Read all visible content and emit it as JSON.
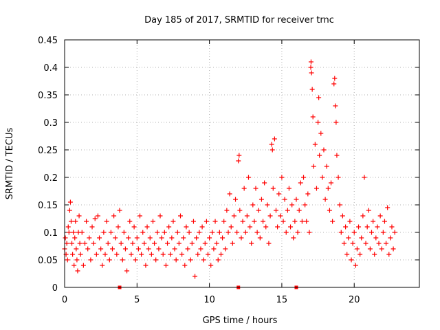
{
  "chart_data": {
    "type": "scatter",
    "title": "Day 185 of 2017, SRMTID for receiver trnc",
    "xlabel": "GPS time / hours",
    "ylabel": "SRMTID / TECUs",
    "xlim": [
      0,
      24.5
    ],
    "ylim": [
      0,
      0.45
    ],
    "xticks": [
      0,
      5,
      10,
      15,
      20
    ],
    "xtick_labels": [
      "0",
      "5",
      "10",
      "15",
      "20"
    ],
    "yticks": [
      0,
      0.05,
      0.1,
      0.15,
      0.2,
      0.25,
      0.3,
      0.35,
      0.4,
      0.45
    ],
    "ytick_labels": [
      "0",
      "0.05",
      "0.1",
      "0.15",
      "0.2",
      "0.25",
      "0.3",
      "0.35",
      "0.4",
      "0.45"
    ],
    "grid": true,
    "marker": "plus",
    "series": [
      {
        "name": "SRMTID",
        "color": "#ff0000",
        "points": [
          [
            0.0,
            0.07
          ],
          [
            0.05,
            0.09
          ],
          [
            0.1,
            0.06
          ],
          [
            0.15,
            0.08
          ],
          [
            0.2,
            0.05
          ],
          [
            0.25,
            0.11
          ],
          [
            0.3,
            0.1
          ],
          [
            0.35,
            0.14
          ],
          [
            0.4,
            0.155
          ],
          [
            0.45,
            0.12
          ],
          [
            0.5,
            0.08
          ],
          [
            0.55,
            0.06
          ],
          [
            0.6,
            0.1
          ],
          [
            0.65,
            0.04
          ],
          [
            0.7,
            0.09
          ],
          [
            0.75,
            0.12
          ],
          [
            0.8,
            0.07
          ],
          [
            0.85,
            0.05
          ],
          [
            0.9,
            0.03
          ],
          [
            0.95,
            0.1
          ],
          [
            1.0,
            0.13
          ],
          [
            1.05,
            0.08
          ],
          [
            1.1,
            0.06
          ],
          [
            1.2,
            0.1
          ],
          [
            1.3,
            0.04
          ],
          [
            1.4,
            0.08
          ],
          [
            1.5,
            0.12
          ],
          [
            1.6,
            0.07
          ],
          [
            1.7,
            0.09
          ],
          [
            1.8,
            0.05
          ],
          [
            1.9,
            0.11
          ],
          [
            2.0,
            0.08
          ],
          [
            2.1,
            0.125
          ],
          [
            2.2,
            0.06
          ],
          [
            2.3,
            0.13
          ],
          [
            2.4,
            0.09
          ],
          [
            2.5,
            0.07
          ],
          [
            2.6,
            0.04
          ],
          [
            2.7,
            0.1
          ],
          [
            2.8,
            0.06
          ],
          [
            2.9,
            0.12
          ],
          [
            3.0,
            0.08
          ],
          [
            3.1,
            0.05
          ],
          [
            3.2,
            0.1
          ],
          [
            3.3,
            0.07
          ],
          [
            3.4,
            0.13
          ],
          [
            3.5,
            0.09
          ],
          [
            3.6,
            0.06
          ],
          [
            3.7,
            0.11
          ],
          [
            3.8,
            0.14
          ],
          [
            3.9,
            0.08
          ],
          [
            4.0,
            0.05
          ],
          [
            4.1,
            0.1
          ],
          [
            4.2,
            0.07
          ],
          [
            4.3,
            0.03
          ],
          [
            4.4,
            0.09
          ],
          [
            4.5,
            0.12
          ],
          [
            4.6,
            0.06
          ],
          [
            4.7,
            0.08
          ],
          [
            4.8,
            0.11
          ],
          [
            4.9,
            0.05
          ],
          [
            5.0,
            0.09
          ],
          [
            5.1,
            0.07
          ],
          [
            5.2,
            0.13
          ],
          [
            5.3,
            0.06
          ],
          [
            5.4,
            0.1
          ],
          [
            5.5,
            0.08
          ],
          [
            5.6,
            0.04
          ],
          [
            5.7,
            0.11
          ],
          [
            5.8,
            0.07
          ],
          [
            5.9,
            0.09
          ],
          [
            6.0,
            0.06
          ],
          [
            6.1,
            0.12
          ],
          [
            6.2,
            0.08
          ],
          [
            6.3,
            0.05
          ],
          [
            6.4,
            0.1
          ],
          [
            6.5,
            0.07
          ],
          [
            6.6,
            0.13
          ],
          [
            6.7,
            0.09
          ],
          [
            6.8,
            0.06
          ],
          [
            6.9,
            0.1
          ],
          [
            7.0,
            0.04
          ],
          [
            7.1,
            0.08
          ],
          [
            7.2,
            0.11
          ],
          [
            7.3,
            0.06
          ],
          [
            7.4,
            0.09
          ],
          [
            7.5,
            0.12
          ],
          [
            7.6,
            0.07
          ],
          [
            7.7,
            0.05
          ],
          [
            7.8,
            0.1
          ],
          [
            7.9,
            0.08
          ],
          [
            8.0,
            0.13
          ],
          [
            8.1,
            0.06
          ],
          [
            8.2,
            0.09
          ],
          [
            8.3,
            0.04
          ],
          [
            8.4,
            0.11
          ],
          [
            8.5,
            0.07
          ],
          [
            8.6,
            0.1
          ],
          [
            8.7,
            0.05
          ],
          [
            8.8,
            0.08
          ],
          [
            8.9,
            0.12
          ],
          [
            9.0,
            0.02
          ],
          [
            9.1,
            0.09
          ],
          [
            9.2,
            0.06
          ],
          [
            9.3,
            0.1
          ],
          [
            9.4,
            0.07
          ],
          [
            9.5,
            0.11
          ],
          [
            9.6,
            0.05
          ],
          [
            9.7,
            0.08
          ],
          [
            9.8,
            0.12
          ],
          [
            9.9,
            0.06
          ],
          [
            10.0,
            0.09
          ],
          [
            10.1,
            0.04
          ],
          [
            10.2,
            0.1
          ],
          [
            10.3,
            0.07
          ],
          [
            10.4,
            0.12
          ],
          [
            10.5,
            0.08
          ],
          [
            10.6,
            0.05
          ],
          [
            10.7,
            0.1
          ],
          [
            10.8,
            0.06
          ],
          [
            10.9,
            0.09
          ],
          [
            11.0,
            0.12
          ],
          [
            11.1,
            0.07
          ],
          [
            11.2,
            0.14
          ],
          [
            11.3,
            0.1
          ],
          [
            11.4,
            0.17
          ],
          [
            11.5,
            0.11
          ],
          [
            11.6,
            0.08
          ],
          [
            11.7,
            0.13
          ],
          [
            11.8,
            0.16
          ],
          [
            11.9,
            0.1
          ],
          [
            12.0,
            0.23
          ],
          [
            12.05,
            0.24
          ],
          [
            12.1,
            0.14
          ],
          [
            12.2,
            0.09
          ],
          [
            12.3,
            0.12
          ],
          [
            12.4,
            0.18
          ],
          [
            12.5,
            0.1
          ],
          [
            12.6,
            0.13
          ],
          [
            12.7,
            0.2
          ],
          [
            12.8,
            0.11
          ],
          [
            12.9,
            0.08
          ],
          [
            13.0,
            0.15
          ],
          [
            13.1,
            0.12
          ],
          [
            13.2,
            0.18
          ],
          [
            13.3,
            0.1
          ],
          [
            13.4,
            0.14
          ],
          [
            13.5,
            0.09
          ],
          [
            13.6,
            0.16
          ],
          [
            13.7,
            0.12
          ],
          [
            13.8,
            0.19
          ],
          [
            13.9,
            0.11
          ],
          [
            14.0,
            0.15
          ],
          [
            14.1,
            0.08
          ],
          [
            14.2,
            0.13
          ],
          [
            14.3,
            0.26
          ],
          [
            14.35,
            0.25
          ],
          [
            14.4,
            0.18
          ],
          [
            14.5,
            0.27
          ],
          [
            14.6,
            0.14
          ],
          [
            14.7,
            0.11
          ],
          [
            14.8,
            0.17
          ],
          [
            14.9,
            0.13
          ],
          [
            15.0,
            0.2
          ],
          [
            15.1,
            0.12
          ],
          [
            15.2,
            0.16
          ],
          [
            15.3,
            0.1
          ],
          [
            15.4,
            0.14
          ],
          [
            15.5,
            0.18
          ],
          [
            15.6,
            0.11
          ],
          [
            15.7,
            0.15
          ],
          [
            15.8,
            0.09
          ],
          [
            15.9,
            0.12
          ],
          [
            16.0,
            0.16
          ],
          [
            16.1,
            0.1
          ],
          [
            16.2,
            0.14
          ],
          [
            16.3,
            0.19
          ],
          [
            16.4,
            0.12
          ],
          [
            16.5,
            0.2
          ],
          [
            16.6,
            0.15
          ],
          [
            16.7,
            0.12
          ],
          [
            16.8,
            0.17
          ],
          [
            16.9,
            0.1
          ],
          [
            17.0,
            0.4
          ],
          [
            17.02,
            0.41
          ],
          [
            17.05,
            0.39
          ],
          [
            17.1,
            0.36
          ],
          [
            17.15,
            0.31
          ],
          [
            17.2,
            0.22
          ],
          [
            17.3,
            0.26
          ],
          [
            17.4,
            0.18
          ],
          [
            17.5,
            0.3
          ],
          [
            17.55,
            0.345
          ],
          [
            17.6,
            0.24
          ],
          [
            17.7,
            0.28
          ],
          [
            17.8,
            0.2
          ],
          [
            17.9,
            0.25
          ],
          [
            18.0,
            0.16
          ],
          [
            18.1,
            0.22
          ],
          [
            18.2,
            0.18
          ],
          [
            18.3,
            0.14
          ],
          [
            18.4,
            0.19
          ],
          [
            18.5,
            0.12
          ],
          [
            18.6,
            0.37
          ],
          [
            18.65,
            0.38
          ],
          [
            18.7,
            0.33
          ],
          [
            18.75,
            0.3
          ],
          [
            18.8,
            0.24
          ],
          [
            18.9,
            0.2
          ],
          [
            19.0,
            0.15
          ],
          [
            19.1,
            0.1
          ],
          [
            19.2,
            0.13
          ],
          [
            19.3,
            0.08
          ],
          [
            19.4,
            0.11
          ],
          [
            19.5,
            0.06
          ],
          [
            19.6,
            0.09
          ],
          [
            19.7,
            0.12
          ],
          [
            19.8,
            0.05
          ],
          [
            19.9,
            0.08
          ],
          [
            20.0,
            0.1
          ],
          [
            20.1,
            0.04
          ],
          [
            20.2,
            0.07
          ],
          [
            20.3,
            0.11
          ],
          [
            20.4,
            0.06
          ],
          [
            20.5,
            0.09
          ],
          [
            20.6,
            0.13
          ],
          [
            20.7,
            0.2
          ],
          [
            20.8,
            0.08
          ],
          [
            20.9,
            0.11
          ],
          [
            21.0,
            0.14
          ],
          [
            21.1,
            0.07
          ],
          [
            21.2,
            0.1
          ],
          [
            21.3,
            0.12
          ],
          [
            21.4,
            0.06
          ],
          [
            21.5,
            0.09
          ],
          [
            21.6,
            0.11
          ],
          [
            21.7,
            0.08
          ],
          [
            21.8,
            0.13
          ],
          [
            21.9,
            0.07
          ],
          [
            22.0,
            0.1
          ],
          [
            22.1,
            0.12
          ],
          [
            22.2,
            0.08
          ],
          [
            22.3,
            0.145
          ],
          [
            22.4,
            0.06
          ],
          [
            22.5,
            0.09
          ],
          [
            22.6,
            0.11
          ],
          [
            22.7,
            0.07
          ],
          [
            22.8,
            0.1
          ]
        ]
      }
    ],
    "axis_marks": [
      3.8,
      12.0,
      16.0
    ]
  }
}
